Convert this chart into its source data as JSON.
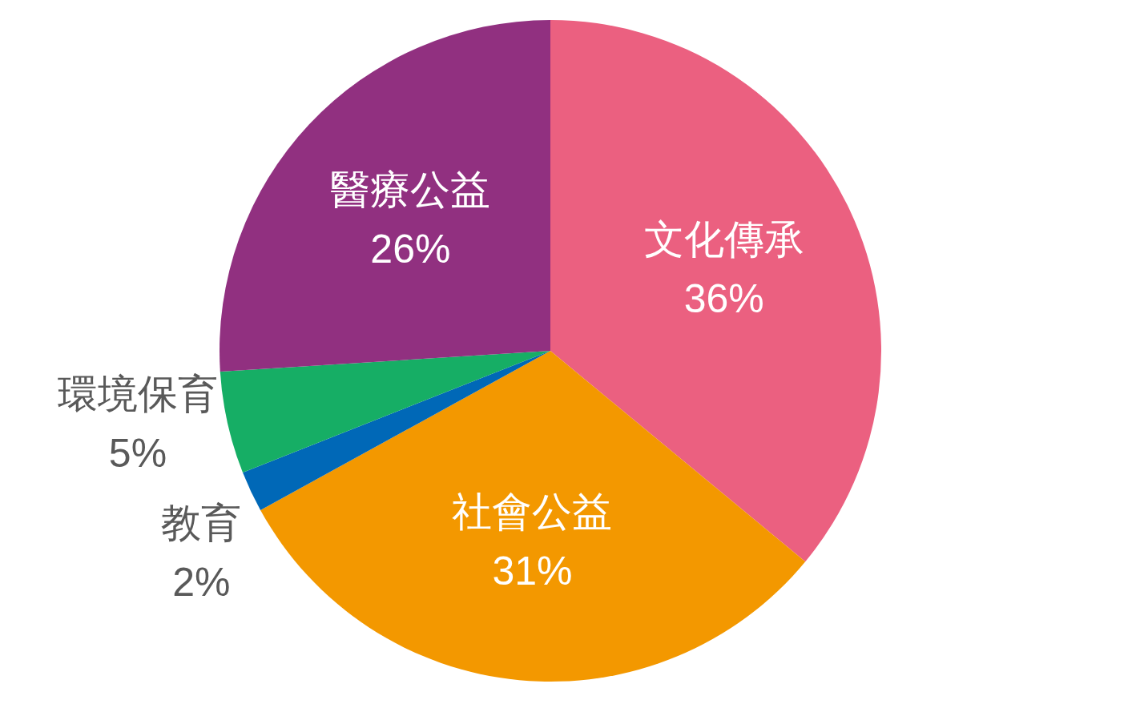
{
  "chart_data": {
    "type": "pie",
    "categories": [
      "文化傳承",
      "社會公益",
      "教育",
      "環境保育",
      "醫療公益"
    ],
    "values": [
      36,
      31,
      2,
      5,
      26
    ],
    "value_labels": [
      "36%",
      "31%",
      "2%",
      "5%",
      "26%"
    ],
    "colors": [
      "#eb6080",
      "#f39800",
      "#0068b7",
      "#16ae65",
      "#913080"
    ],
    "legend": false
  }
}
